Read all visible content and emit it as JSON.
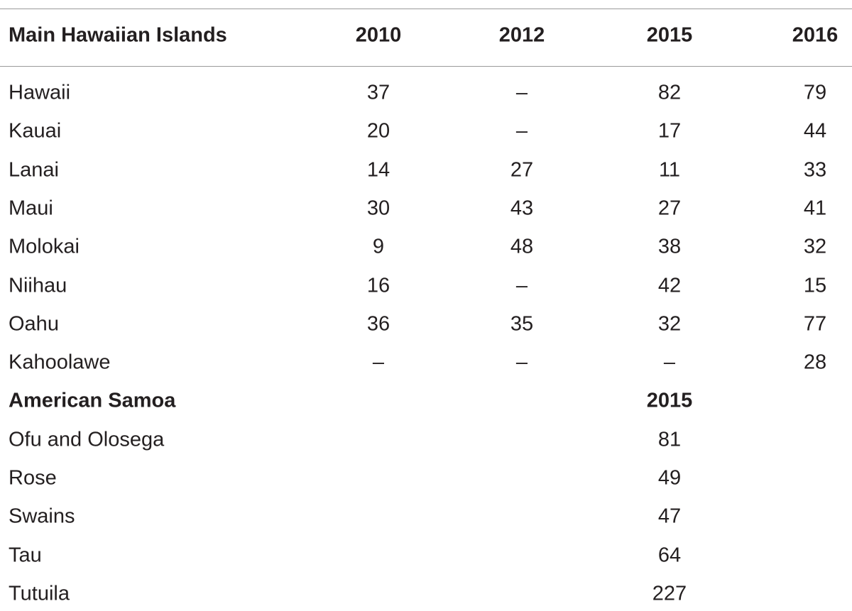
{
  "table": {
    "sections": [
      {
        "header": [
          "Main Hawaiian Islands",
          "2010",
          "2012",
          "2015",
          "2016"
        ],
        "rows": [
          [
            "Hawaii",
            37,
            "–",
            82,
            79
          ],
          [
            "Kauai",
            20,
            "–",
            17,
            44
          ],
          [
            "Lanai",
            14,
            27,
            11,
            33
          ],
          [
            "Maui",
            30,
            43,
            27,
            41
          ],
          [
            "Molokai",
            9,
            48,
            38,
            32
          ],
          [
            "Niihau",
            16,
            "–",
            42,
            15
          ],
          [
            "Oahu",
            36,
            35,
            32,
            77
          ],
          [
            "Kahoolawe",
            "–",
            "–",
            "–",
            28
          ]
        ]
      },
      {
        "header": [
          "American Samoa",
          "2015"
        ],
        "rows": [
          [
            "Ofu and Olosega",
            81
          ],
          [
            "Rose",
            49
          ],
          [
            "Swains",
            47
          ],
          [
            "Tau",
            64
          ],
          [
            "Tutuila",
            227
          ]
        ]
      }
    ]
  }
}
